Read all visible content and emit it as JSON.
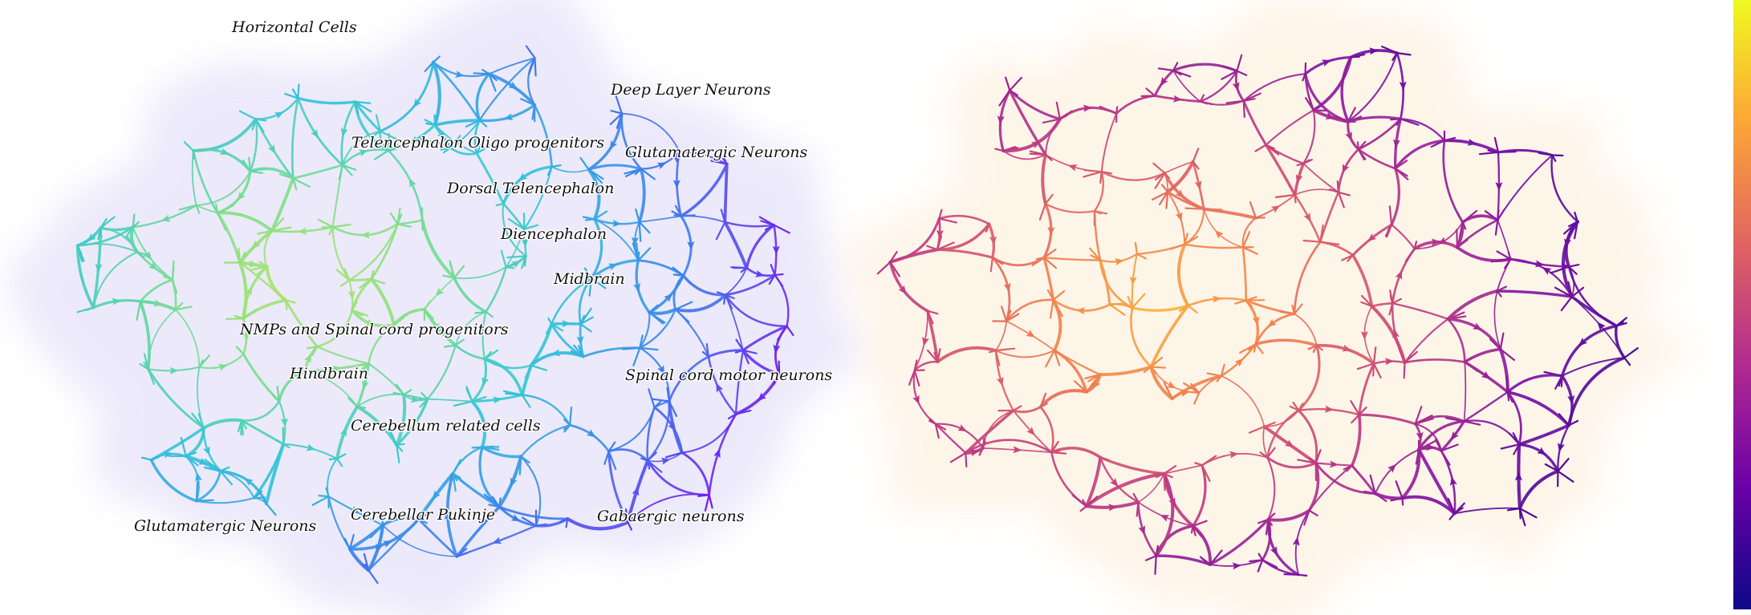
{
  "left_panel": {
    "labels": [
      "Horizontal Cells",
      "Deep Layer Neurons",
      "Telencephalon Oligo progenitors",
      "Glutamatergic Neurons",
      "Dorsal Telencephalon",
      "Diencephalon",
      "Midbrain",
      "NMPs and Spinal cord progenitors",
      "Hindbrain",
      "Spinal cord motor neurons",
      "Cerebellum related cells",
      "Cerebellar Pukinje",
      "Gabaergic neurons",
      "Glutamatergic Neurons"
    ],
    "palette": [
      "#7b10f0",
      "#3d7fee",
      "#33c6d8",
      "#7de08a",
      "#b7e36a"
    ]
  },
  "right_panel": {
    "palette": [
      "#2c0a8c",
      "#7a11a6",
      "#c33d80",
      "#ef7c52",
      "#fbb33a"
    ]
  },
  "colorbar": {
    "stops": [
      "#0d0887",
      "#6a00a8",
      "#b12a90",
      "#e16462",
      "#fca636",
      "#f0f921"
    ]
  }
}
